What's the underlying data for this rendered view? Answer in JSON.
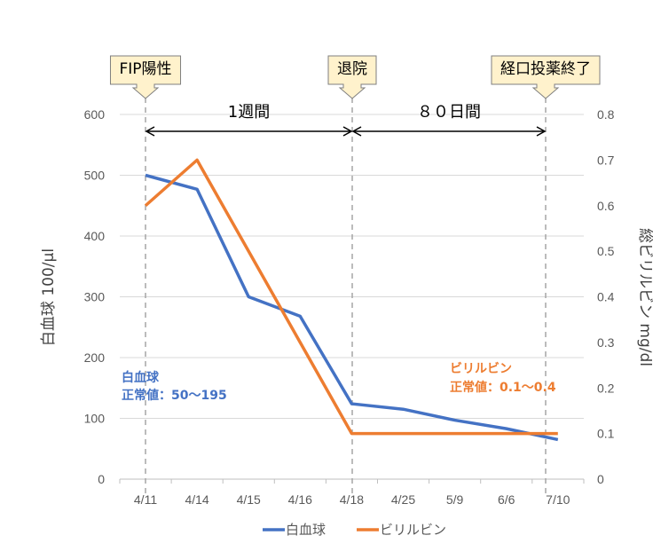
{
  "chart_data": {
    "type": "line",
    "categories": [
      "4/11",
      "4/14",
      "4/15",
      "4/16",
      "4/18",
      "4/25",
      "5/9",
      "6/6",
      "7/10"
    ],
    "series": [
      {
        "name": "白血球",
        "axis": "left",
        "color": "#4472C4",
        "values": [
          500,
          477,
          300,
          268,
          124,
          115,
          97,
          83,
          65
        ]
      },
      {
        "name": "ビリルビン",
        "axis": "right",
        "color": "#ED7D31",
        "values": [
          0.6,
          0.7,
          0.5,
          0.3,
          0.1,
          0.1,
          0.1,
          0.1,
          0.1
        ]
      }
    ],
    "ylabel": "白血球 100/μl",
    "y2label": "総ビリルビン mg/dl",
    "ylim": [
      0,
      600
    ],
    "yticks": [
      0,
      100,
      200,
      300,
      400,
      500,
      600
    ],
    "y2lim": [
      0,
      0.8
    ],
    "y2ticks": [
      "0",
      "0.1",
      "0.2",
      "0.3",
      "0.4",
      "0.5",
      "0.6",
      "0.7",
      "0.8"
    ],
    "grid": true,
    "legend": "bottom",
    "events": [
      {
        "label": "FIP陽性",
        "category": "4/11"
      },
      {
        "label": "退院",
        "category": "4/18"
      },
      {
        "label": "経口投薬終了",
        "category": "7/10"
      }
    ],
    "spans": [
      {
        "label": "1週間"
      },
      {
        "label": "８０日間"
      }
    ],
    "notes": [
      {
        "title": "白血球",
        "text": "正常値：50～195",
        "color": "#4472C4"
      },
      {
        "title": "ビリルビン",
        "text": "正常値：0.1～0.4",
        "color": "#ED7D31"
      }
    ]
  }
}
